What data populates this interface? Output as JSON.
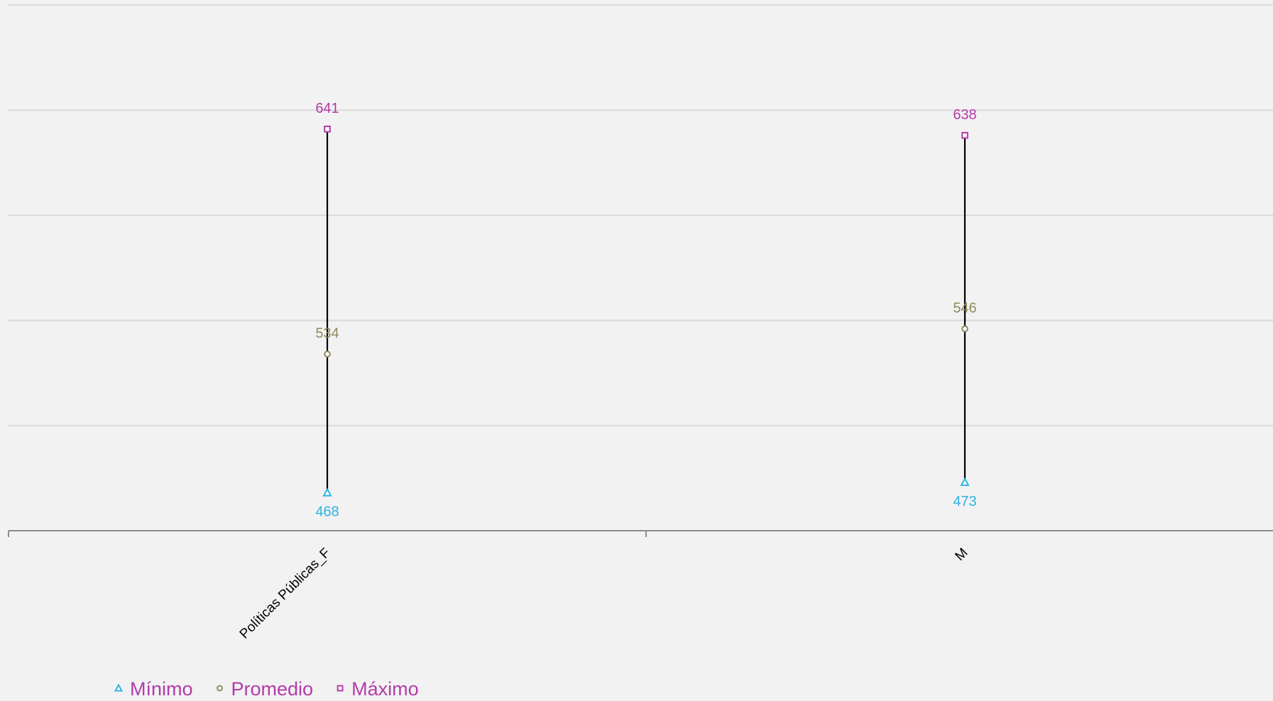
{
  "chart_data": {
    "type": "scatter",
    "title": "",
    "xlabel": "",
    "ylabel": "",
    "categories": [
      "Políticas Públicas_F",
      "M"
    ],
    "ylim": [
      450,
      700
    ],
    "gridlines": [
      450,
      500,
      550,
      600,
      650,
      700
    ],
    "grid": true,
    "legend_position": "bottom-left",
    "series": [
      {
        "name": "Mínimo",
        "values": [
          468,
          473
        ],
        "marker": "triangle",
        "color": "#2fb3e0"
      },
      {
        "name": "Promedio",
        "values": [
          534,
          546
        ],
        "marker": "circle",
        "color": "#8f8a5e"
      },
      {
        "name": "Máximo",
        "values": [
          641,
          638
        ],
        "marker": "square",
        "color": "#b43aaa"
      }
    ],
    "range_line_color": "#000000"
  }
}
